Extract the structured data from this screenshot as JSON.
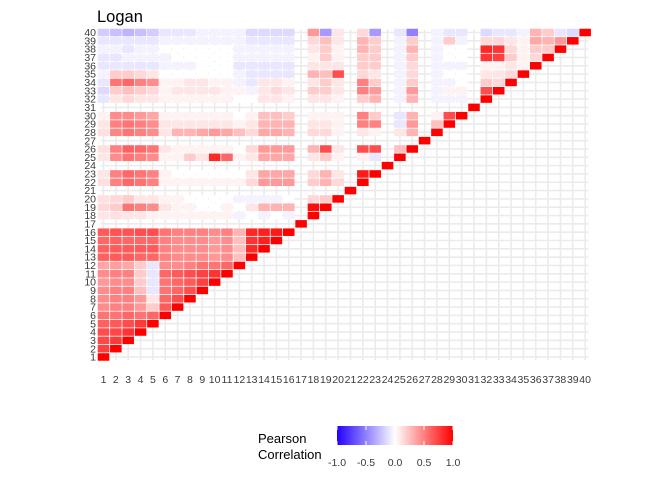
{
  "chart_data": {
    "type": "heatmap",
    "title": "Logan",
    "xlabel": "",
    "ylabel": "",
    "n": 40,
    "labels": [
      "1",
      "2",
      "3",
      "4",
      "5",
      "6",
      "7",
      "8",
      "9",
      "10",
      "11",
      "12",
      "13",
      "14",
      "15",
      "16",
      "17",
      "18",
      "19",
      "20",
      "21",
      "22",
      "23",
      "24",
      "25",
      "26",
      "27",
      "28",
      "29",
      "30",
      "31",
      "32",
      "33",
      "34",
      "35",
      "36",
      "37",
      "38",
      "39",
      "40"
    ],
    "layout": "lower-triangle (row index >= column index)",
    "blank_variables": [
      17,
      21,
      24,
      27,
      31
    ],
    "legend": {
      "title": "Pearson\nCorrelation",
      "range": [
        -1.0,
        1.0
      ],
      "ticks": [
        -1.0,
        -0.5,
        0.0,
        0.5,
        1.0
      ],
      "tick_labels": [
        "-1.0",
        "-0.5",
        "0.0",
        "0.5",
        "1.0"
      ]
    },
    "colors": {
      "low": "#2200ff",
      "mid": "#ffffff",
      "high": "#ff0000",
      "grid": "#ebebeb"
    },
    "correlations": {
      "1": {
        "2": 0.75,
        "3": 0.72,
        "4": 0.7,
        "5": 0.62,
        "6": 0.55,
        "7": 0.45,
        "8": 0.45,
        "9": 0.45,
        "10": 0.4,
        "11": 0.45,
        "12": 0.35,
        "13": 0.62,
        "14": 0.62,
        "15": 0.6,
        "16": 0.65,
        "18": 0.1,
        "19": 0.15,
        "20": 0.12,
        "22": 0.12,
        "23": 0.1,
        "25": 0.1,
        "26": 0.12,
        "28": 0.12,
        "29": 0.1,
        "30": 0.05,
        "32": -0.1,
        "33": -0.15,
        "34": -0.1,
        "35": -0.05,
        "36": -0.1,
        "37": -0.1,
        "38": -0.05,
        "39": -0.1,
        "40": -0.2
      },
      "2": {
        "3": 0.78,
        "4": 0.72,
        "5": 0.65,
        "6": 0.55,
        "7": 0.5,
        "8": 0.5,
        "9": 0.5,
        "10": 0.45,
        "11": 0.5,
        "12": 0.38,
        "13": 0.65,
        "14": 0.65,
        "15": 0.62,
        "16": 0.68,
        "18": 0.12,
        "19": 0.2,
        "20": 0.15,
        "22": 0.5,
        "23": 0.5,
        "25": 0.45,
        "26": 0.5,
        "28": 0.48,
        "29": 0.5,
        "30": 0.45,
        "32": 0.1,
        "33": 0.2,
        "34": 0.55,
        "35": 0.2,
        "36": -0.1,
        "37": -0.1,
        "38": -0.05,
        "39": -0.1,
        "40": -0.25
      },
      "3": {
        "4": 0.8,
        "5": 0.7,
        "6": 0.6,
        "7": 0.5,
        "8": 0.5,
        "9": 0.5,
        "10": 0.45,
        "11": 0.5,
        "12": 0.35,
        "13": 0.65,
        "14": 0.65,
        "15": 0.6,
        "16": 0.68,
        "18": 0.1,
        "19": 0.55,
        "20": 0.2,
        "22": 0.6,
        "23": 0.6,
        "25": 0.55,
        "26": 0.62,
        "28": 0.55,
        "29": 0.55,
        "30": 0.45,
        "32": 0.15,
        "33": 0.25,
        "34": 0.6,
        "35": 0.2,
        "36": -0.1,
        "37": -0.05,
        "38": -0.1,
        "39": -0.1,
        "40": -0.3
      },
      "4": {
        "5": 0.78,
        "6": 0.55,
        "7": 0.4,
        "8": 0.4,
        "9": 0.25,
        "10": 0.2,
        "11": 0.2,
        "12": 0.2,
        "13": 0.6,
        "14": 0.65,
        "15": 0.6,
        "16": 0.7,
        "18": 0.1,
        "19": 0.5,
        "20": 0.1,
        "22": 0.55,
        "23": 0.55,
        "25": 0.5,
        "26": 0.6,
        "28": 0.5,
        "29": 0.5,
        "30": 0.4,
        "32": 0.1,
        "33": 0.2,
        "34": 0.5,
        "35": 0.15,
        "36": -0.1,
        "37": -0.05,
        "38": -0.05,
        "39": -0.1,
        "40": -0.25
      },
      "5": {
        "6": 0.6,
        "7": 0.2,
        "8": 0.1,
        "9": -0.1,
        "10": -0.1,
        "11": -0.1,
        "12": -0.1,
        "13": 0.6,
        "14": 0.65,
        "15": 0.6,
        "16": 0.7,
        "18": 0.05,
        "19": 0.45,
        "20": 0.1,
        "22": 0.5,
        "23": 0.5,
        "25": 0.45,
        "26": 0.55,
        "28": 0.45,
        "29": 0.45,
        "30": 0.35,
        "32": 0.1,
        "33": 0.15,
        "34": 0.45,
        "35": 0.1,
        "36": -0.1,
        "37": -0.05,
        "38": -0.05,
        "39": -0.1,
        "40": -0.2
      },
      "6": {
        "7": 0.65,
        "8": 0.6,
        "9": 0.55,
        "10": 0.55,
        "11": 0.6,
        "12": 0.45,
        "13": 0.5,
        "14": 0.5,
        "15": 0.5,
        "16": 0.55,
        "18": 0.05,
        "19": 0.1,
        "20": 0.05,
        "22": 0.05,
        "23": 0.05,
        "25": 0.05,
        "26": 0.1,
        "28": 0.1,
        "29": 0.1,
        "30": 0.05,
        "32": 0.05,
        "33": 0.05,
        "34": 0.05,
        "35": 0.0,
        "36": -0.05,
        "37": -0.05,
        "38": 0.0,
        "39": -0.05,
        "40": -0.1
      },
      "7": {
        "8": 0.7,
        "9": 0.6,
        "10": 0.6,
        "11": 0.65,
        "12": 0.45,
        "13": 0.45,
        "14": 0.45,
        "15": 0.45,
        "16": 0.5,
        "18": 0.05,
        "19": 0.05,
        "20": 0.05,
        "22": 0.05,
        "23": 0.0,
        "25": 0.05,
        "26": 0.05,
        "28": 0.3,
        "29": 0.1,
        "30": 0.05,
        "32": 0.05,
        "33": 0.1,
        "34": 0.05,
        "35": 0.0,
        "36": -0.05,
        "37": 0.0,
        "38": 0.0,
        "39": -0.05,
        "40": -0.1
      },
      "8": {
        "9": 0.7,
        "10": 0.65,
        "11": 0.7,
        "12": 0.5,
        "13": 0.45,
        "14": 0.45,
        "15": 0.45,
        "16": 0.5,
        "18": 0.05,
        "19": 0.05,
        "20": 0.0,
        "22": 0.05,
        "23": 0.0,
        "25": 0.2,
        "26": 0.05,
        "28": 0.3,
        "29": 0.1,
        "30": 0.05,
        "32": 0.05,
        "33": 0.1,
        "34": 0.1,
        "35": 0.0,
        "36": -0.05,
        "37": 0.0,
        "38": 0.0,
        "39": -0.05,
        "40": -0.1
      },
      "9": {
        "10": 0.75,
        "11": 0.75,
        "12": 0.55,
        "13": 0.45,
        "14": 0.45,
        "15": 0.45,
        "16": 0.5,
        "18": 0.05,
        "19": 0.0,
        "20": 0.0,
        "22": 0.05,
        "23": 0.0,
        "25": 0.1,
        "26": 0.05,
        "28": 0.35,
        "29": 0.1,
        "30": 0.05,
        "32": 0.05,
        "33": 0.1,
        "34": 0.1,
        "35": 0.0,
        "36": 0.0,
        "37": 0.0,
        "38": 0.0,
        "39": -0.05,
        "40": -0.05
      },
      "10": {
        "11": 0.8,
        "12": 0.55,
        "13": 0.4,
        "14": 0.4,
        "15": 0.4,
        "16": 0.45,
        "18": 0.05,
        "19": 0.0,
        "20": 0.0,
        "22": 0.05,
        "23": 0.0,
        "25": 0.85,
        "26": 0.05,
        "28": 0.4,
        "29": 0.1,
        "30": 0.05,
        "32": 0.05,
        "33": 0.1,
        "34": 0.05,
        "35": 0.0,
        "36": 0.0,
        "37": 0.0,
        "38": 0.0,
        "39": -0.05,
        "40": -0.05
      },
      "11": {
        "12": 0.6,
        "13": 0.45,
        "14": 0.45,
        "15": 0.45,
        "16": 0.5,
        "18": 0.05,
        "19": 0.05,
        "20": 0.0,
        "22": 0.05,
        "23": 0.0,
        "25": 0.6,
        "26": 0.05,
        "28": 0.35,
        "29": 0.1,
        "30": 0.05,
        "32": 0.05,
        "33": 0.05,
        "34": 0.05,
        "35": 0.0,
        "36": 0.0,
        "37": 0.0,
        "38": 0.0,
        "39": -0.05,
        "40": -0.05
      },
      "12": {
        "13": 0.25,
        "14": 0.25,
        "15": 0.25,
        "16": 0.3,
        "18": -0.05,
        "19": 0.0,
        "20": -0.05,
        "22": 0.05,
        "23": 0.0,
        "25": 0.05,
        "26": 0.0,
        "28": 0.25,
        "29": 0.05,
        "30": 0.0,
        "32": 0.0,
        "33": 0.05,
        "34": -0.05,
        "35": -0.05,
        "36": -0.1,
        "37": -0.05,
        "38": -0.05,
        "39": -0.05,
        "40": -0.05
      },
      "13": {
        "14": 0.85,
        "15": 0.8,
        "16": 0.85,
        "18": 0.0,
        "19": 0.1,
        "20": -0.05,
        "22": 0.15,
        "23": 0.1,
        "25": 0.1,
        "26": 0.15,
        "28": 0.15,
        "29": 0.1,
        "30": 0.05,
        "32": 0.0,
        "33": -0.05,
        "34": -0.1,
        "35": -0.1,
        "36": -0.1,
        "37": -0.05,
        "38": -0.05,
        "39": -0.1,
        "40": -0.15
      },
      "14": {
        "15": 0.88,
        "16": 0.88,
        "18": -0.05,
        "19": 0.3,
        "20": -0.05,
        "22": 0.4,
        "23": 0.35,
        "25": 0.35,
        "26": 0.4,
        "28": 0.35,
        "29": 0.3,
        "30": 0.25,
        "32": 0.1,
        "33": 0.1,
        "34": 0.1,
        "35": -0.1,
        "36": -0.1,
        "37": -0.05,
        "38": -0.05,
        "39": -0.1,
        "40": -0.15
      },
      "15": {
        "16": 0.9,
        "18": 0.0,
        "19": 0.3,
        "20": -0.05,
        "22": 0.4,
        "23": 0.35,
        "25": 0.35,
        "26": 0.4,
        "28": 0.35,
        "29": 0.3,
        "30": 0.25,
        "32": 0.1,
        "33": 0.15,
        "34": 0.1,
        "35": -0.1,
        "36": -0.1,
        "37": -0.05,
        "38": -0.05,
        "39": -0.1,
        "40": -0.15
      },
      "16": {
        "18": -0.05,
        "19": 0.3,
        "20": 0.0,
        "22": 0.4,
        "23": 0.35,
        "25": 0.35,
        "26": 0.4,
        "28": 0.3,
        "29": 0.3,
        "30": 0.2,
        "32": 0.05,
        "33": 0.1,
        "34": 0.05,
        "35": -0.1,
        "36": -0.1,
        "37": -0.05,
        "38": -0.05,
        "39": -0.1,
        "40": -0.15
      },
      "18": {
        "19": 0.95,
        "20": 0.15,
        "22": 0.2,
        "23": 0.15,
        "25": 0.1,
        "26": 0.3,
        "28": 0.15,
        "29": 0.1,
        "30": 0.05,
        "32": 0.1,
        "33": 0.2,
        "34": 0.1,
        "35": 0.3,
        "36": 0.1,
        "37": 0.05,
        "38": 0.1,
        "39": 0.15,
        "40": 0.4
      },
      "19": {
        "20": 0.2,
        "22": 0.3,
        "23": 0.3,
        "25": 0.2,
        "26": 0.7,
        "28": 0.15,
        "29": 0.1,
        "30": 0.05,
        "32": 0.1,
        "33": 0.2,
        "34": 0.2,
        "35": 0.25,
        "36": 0.1,
        "37": 0.2,
        "38": 0.2,
        "39": 0.25,
        "40": -0.4
      },
      "20": {
        "22": 0.15,
        "23": 0.1,
        "25": 0.05,
        "26": 0.1,
        "28": 0.05,
        "29": 0.05,
        "30": 0.05,
        "32": 0.05,
        "33": 0.1,
        "34": 0.1,
        "35": 0.7,
        "36": 0.1,
        "37": 0.05,
        "38": 0.05,
        "39": 0.1,
        "40": 0.1
      },
      "22": {
        "23": 0.9,
        "25": 0.05,
        "26": 0.7,
        "28": 0.1,
        "29": 0.5,
        "30": 0.5,
        "32": 0.2,
        "33": 0.5,
        "34": 0.5,
        "35": 0.15,
        "36": 0.2,
        "37": 0.2,
        "38": 0.3,
        "39": 0.3,
        "40": 0.15
      },
      "23": {
        "25": -0.1,
        "26": 0.7,
        "28": 0.05,
        "29": 0.5,
        "30": 0.2,
        "32": 0.3,
        "33": 0.4,
        "34": 0.2,
        "35": 0.1,
        "36": 0.2,
        "37": 0.2,
        "38": 0.2,
        "39": 0.2,
        "40": -0.4
      },
      "25": {
        "26": 0.25,
        "28": 0.1,
        "29": -0.1,
        "30": -0.1,
        "32": -0.05,
        "33": -0.05,
        "34": -0.05,
        "35": -0.05,
        "36": -0.05,
        "37": -0.05,
        "38": -0.05,
        "39": -0.05,
        "40": -0.1
      },
      "26": {
        "28": 0.3,
        "29": 0.4,
        "30": 0.3,
        "32": 0.3,
        "33": 0.4,
        "34": 0.2,
        "35": 0.15,
        "36": 0.15,
        "37": 0.2,
        "38": 0.3,
        "39": 0.2,
        "40": -0.5
      },
      "28": {
        "29": 0.25,
        "30": 0.05,
        "32": -0.05,
        "33": -0.05,
        "34": -0.05,
        "35": -0.05,
        "36": -0.05,
        "37": -0.05,
        "38": -0.05,
        "39": -0.05,
        "40": -0.05
      },
      "29": {
        "30": 0.7,
        "32": -0.05,
        "33": 0.05,
        "34": -0.05,
        "35": 0.0,
        "36": -0.05,
        "37": 0.0,
        "38": 0.0,
        "39": 0.2,
        "40": -0.1
      },
      "30": {
        "32": -0.05,
        "33": 0.05,
        "34": 0.0,
        "35": 0.0,
        "36": -0.05,
        "37": 0.0,
        "38": 0.0,
        "39": -0.05,
        "40": -0.1
      },
      "32": {
        "33": 0.7,
        "34": 0.2,
        "35": 0.1,
        "36": 0.05,
        "37": 0.8,
        "38": 0.85,
        "39": 0.15,
        "40": -0.15
      },
      "33": {
        "34": 0.15,
        "35": 0.1,
        "36": 0.05,
        "37": 0.75,
        "38": 0.8,
        "39": 0.15,
        "40": -0.1
      },
      "34": {
        "35": 0.15,
        "36": 0.1,
        "37": 0.2,
        "38": 0.15,
        "39": 0.1,
        "40": -0.1
      },
      "35": {
        "36": 0.05,
        "37": 0.05,
        "38": 0.05,
        "39": 0.05,
        "40": -0.05
      },
      "36": {
        "37": 0.15,
        "38": 0.2,
        "39": 0.35,
        "40": 0.3
      },
      "37": {
        "38": 0.2,
        "39": 0.3,
        "40": 0.2
      },
      "38": {
        "39": 0.4,
        "40": -0.1
      },
      "39": {
        "40": -0.15
      }
    }
  }
}
